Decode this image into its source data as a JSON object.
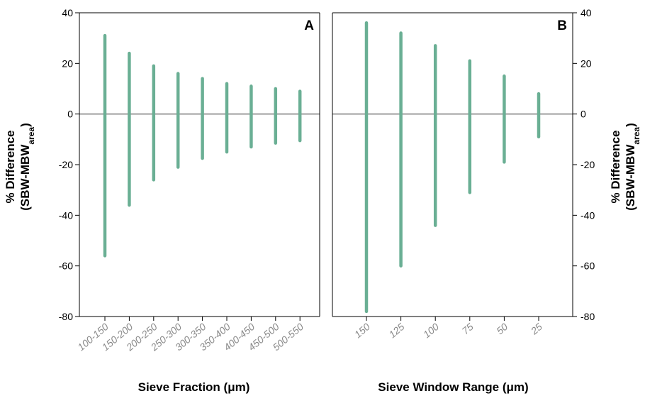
{
  "colors": {
    "bar": "#6aaf94",
    "zero_line": "#a0a0a0",
    "axis": "#000000",
    "category_text": "#8a8a8a"
  },
  "chart_data": [
    {
      "type": "bar",
      "subtype": "range",
      "panel_label": "A",
      "xlabel": "Sieve Fraction (μm)",
      "ylabel": "% Difference (SBW-MBWarea)",
      "ylabel_main": "% Difference",
      "ylabel_sub_prefix": "(SBW-MBW",
      "ylabel_sub_subscript": "area",
      "ylabel_sub_suffix": ")",
      "y_axis_side": "left",
      "ylim": [
        -80,
        40
      ],
      "yticks": [
        40,
        20,
        0,
        -20,
        -40,
        -60,
        -80
      ],
      "ytick_labels": [
        "40",
        "20",
        "0",
        "-20",
        "-40",
        "-60",
        "-80"
      ],
      "zero_line": true,
      "grid": false,
      "categories": [
        "100-150",
        "150-200",
        "200-250",
        "250-300",
        "300-350",
        "350-400",
        "400-450",
        "450-500",
        "500-550"
      ],
      "series": [
        {
          "low": [
            -56,
            -36,
            -26,
            -21,
            -17.5,
            -15,
            -13,
            -11.5,
            -10.5
          ],
          "high": [
            31,
            24,
            19,
            16,
            14,
            12,
            11,
            10,
            9
          ]
        }
      ]
    },
    {
      "type": "bar",
      "subtype": "range",
      "panel_label": "B",
      "xlabel": "Sieve Window Range (μm)",
      "ylabel": "% Difference (SBW-MBWarea)",
      "ylabel_main": "% Difference",
      "ylabel_sub_prefix": "(SBW-MBW",
      "ylabel_sub_subscript": "area",
      "ylabel_sub_suffix": ")",
      "y_axis_side": "right",
      "ylim": [
        -80,
        40
      ],
      "yticks": [
        40,
        20,
        0,
        -20,
        -40,
        -60,
        -80
      ],
      "ytick_labels": [
        "40",
        "20",
        "0",
        "-20",
        "-40",
        "-60",
        "-80"
      ],
      "zero_line": true,
      "grid": false,
      "categories": [
        "150",
        "125",
        "100",
        "75",
        "50",
        "25"
      ],
      "series": [
        {
          "low": [
            -78,
            -60,
            -44,
            -31,
            -19,
            -9
          ],
          "high": [
            36,
            32,
            27,
            21,
            15,
            8
          ]
        }
      ]
    }
  ]
}
